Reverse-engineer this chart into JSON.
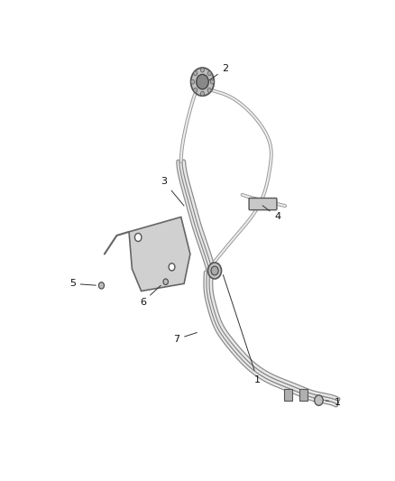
{
  "background_color": "#ffffff",
  "line_color": "#aaaaaa",
  "line_color_dark": "#777777",
  "figure_width": 4.38,
  "figure_height": 5.33,
  "dpi": 100,
  "tube_lw_outer": 3.5,
  "tube_lw_inner": 1.8,
  "single_lw_outer": 2.8,
  "single_lw_inner": 1.4,
  "color_outer": "#888888",
  "color_inner": "#e8e8e8",
  "color_single_outer": "#999999",
  "color_single_inner": "#eeeeee"
}
